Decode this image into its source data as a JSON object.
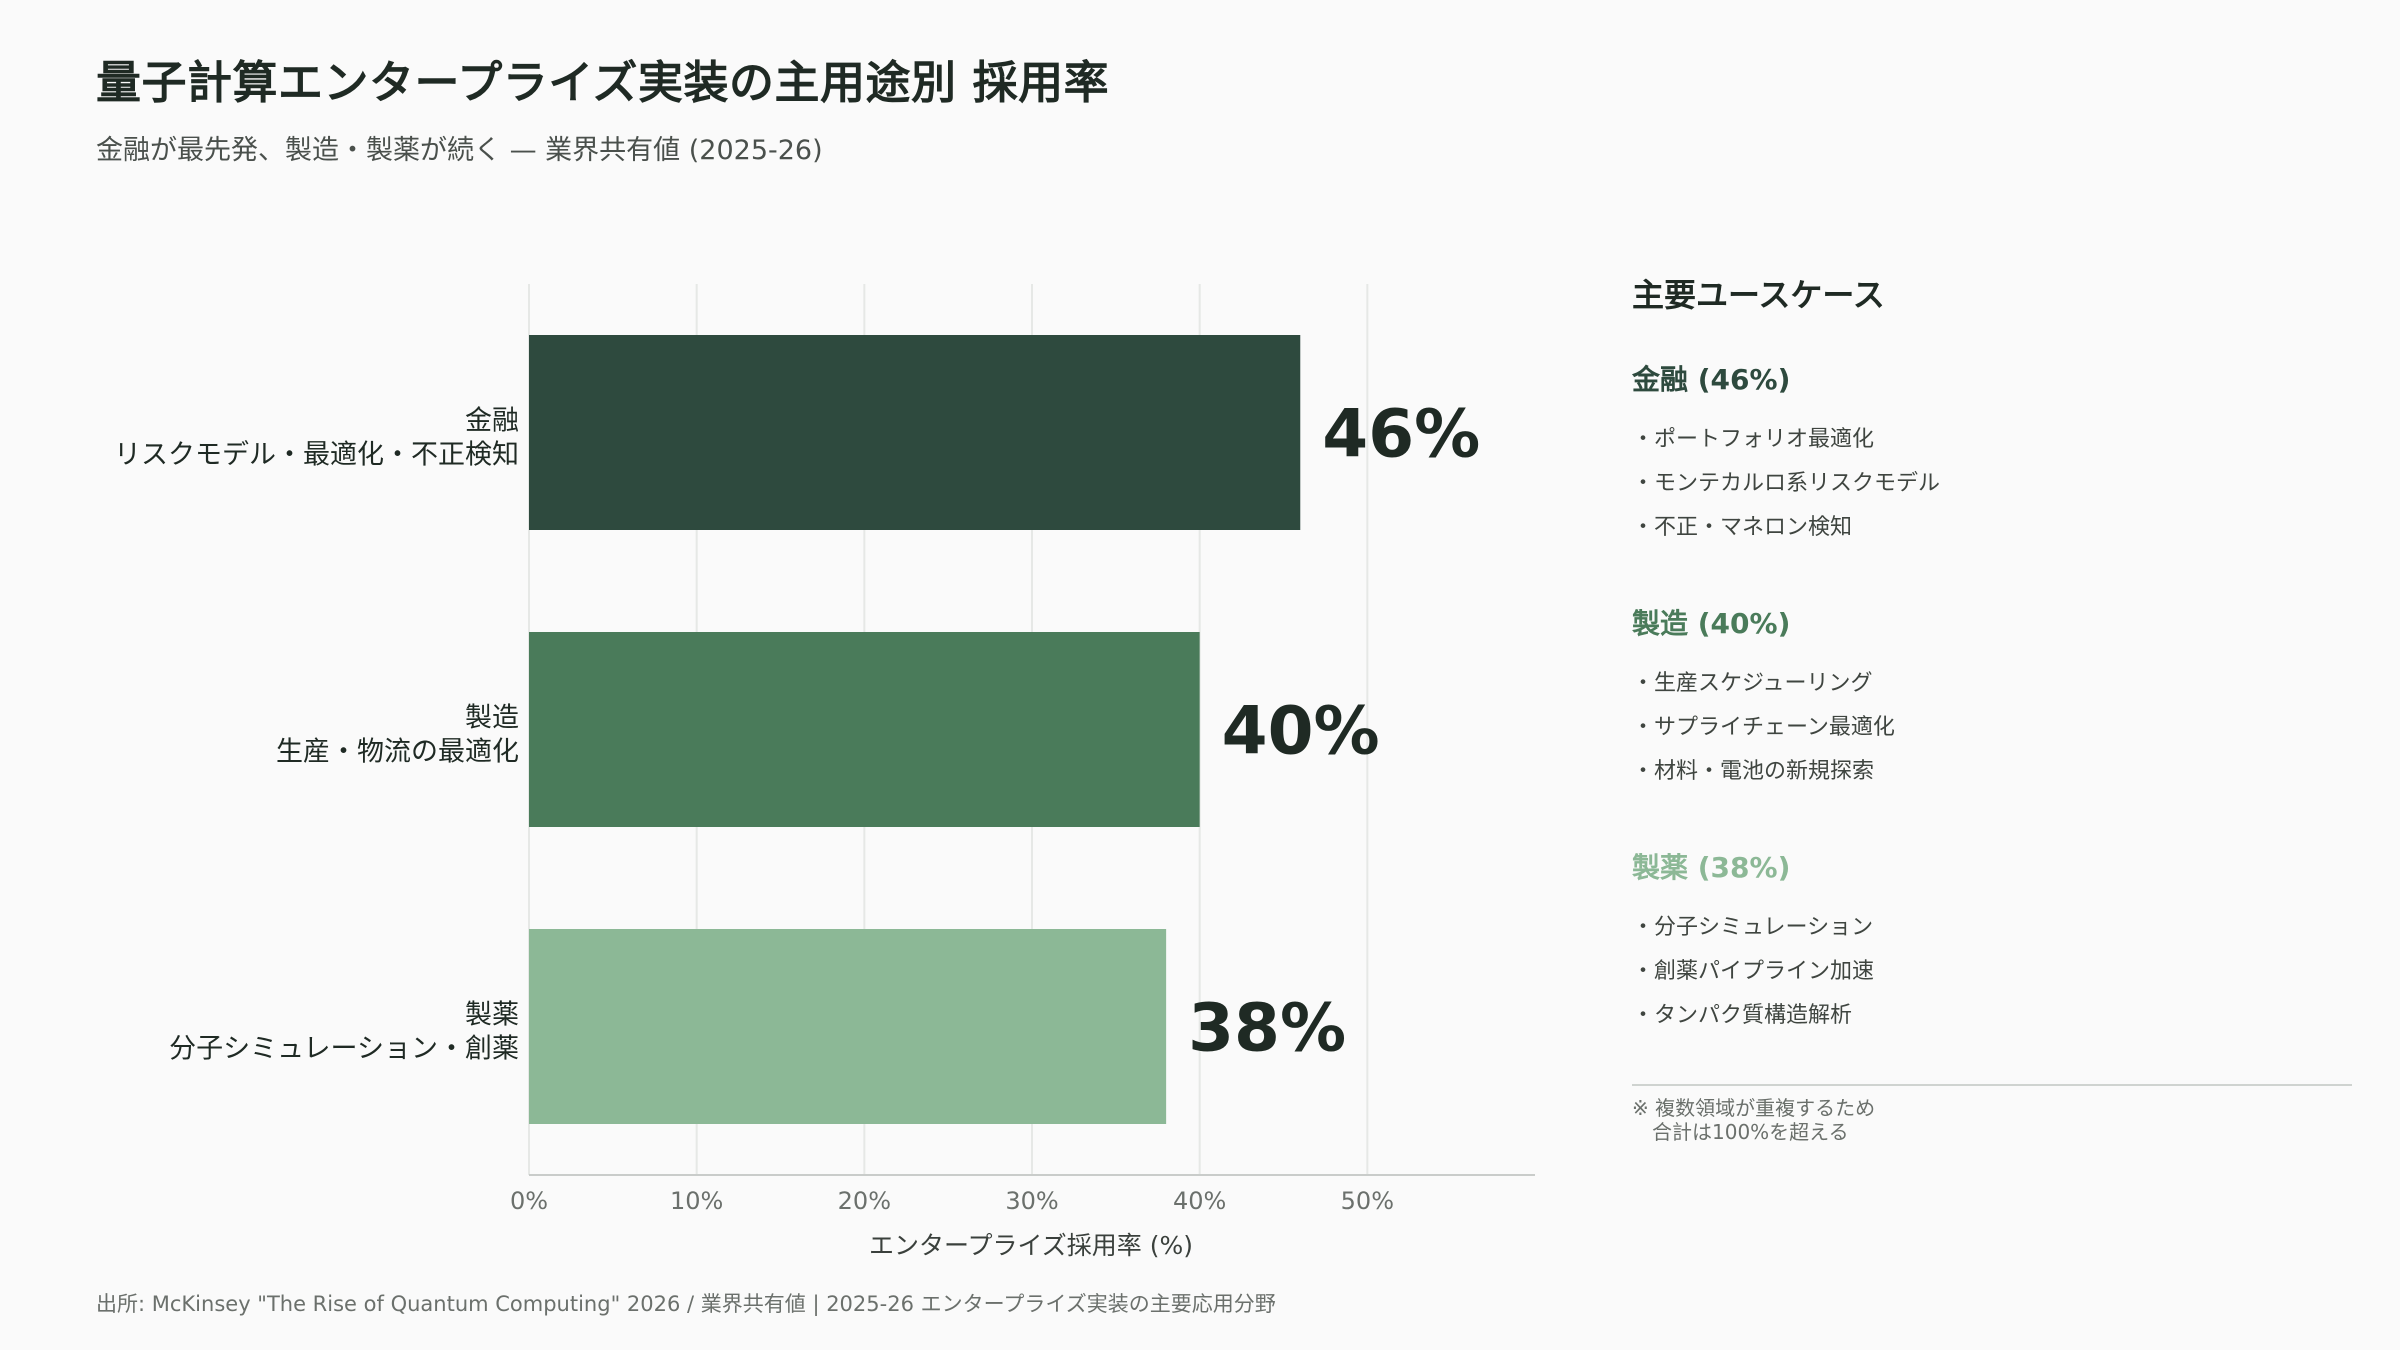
{
  "title": "量子計算エンタープライズ実装の主用途別 採用率",
  "subtitle": "金融が最先発、製造・製薬が続く — 業界共有値 (2025-26)",
  "chart_data": {
    "type": "bar",
    "orientation": "horizontal",
    "categories": [
      {
        "name": "金融",
        "detail": "リスクモデル・最適化・不正検知"
      },
      {
        "name": "製造",
        "detail": "生産・物流の最適化"
      },
      {
        "name": "製薬",
        "detail": "分子シミュレーション・創薬"
      }
    ],
    "values": [
      46,
      40,
      38
    ],
    "value_labels": [
      "46%",
      "40%",
      "38%"
    ],
    "colors": [
      "#2e4a3e",
      "#4a7b5a",
      "#8cb896"
    ],
    "xlabel": "エンタープライズ採用率 (%)",
    "xlim": [
      0,
      60
    ],
    "xticks": [
      0,
      10,
      20,
      30,
      40,
      50
    ],
    "xtick_labels": [
      "0%",
      "10%",
      "20%",
      "30%",
      "40%",
      "50%"
    ],
    "grid": true
  },
  "sidebar": {
    "heading": "主要ユースケース",
    "groups": [
      {
        "title": "金融 (46%)",
        "color": "#2e4a3e",
        "items": [
          "・ポートフォリオ最適化",
          "・モンテカルロ系リスクモデル",
          "・不正・マネロン検知"
        ]
      },
      {
        "title": "製造 (40%)",
        "color": "#4a7b5a",
        "items": [
          "・生産スケジューリング",
          "・サプライチェーン最適化",
          "・材料・電池の新規探索"
        ]
      },
      {
        "title": "製薬 (38%)",
        "color": "#8cb896",
        "items": [
          "・分子シミュレーション",
          "・創薬パイプライン加速",
          "・タンパク質構造解析"
        ]
      }
    ],
    "note_lines": [
      "※ 複数領域が重複するため",
      "　合計は100%を超える"
    ]
  },
  "source": "出所: McKinsey \"The Rise of Quantum Computing\" 2026 / 業界共有値 | 2025-26 エンタープライズ実装の主要応用分野"
}
